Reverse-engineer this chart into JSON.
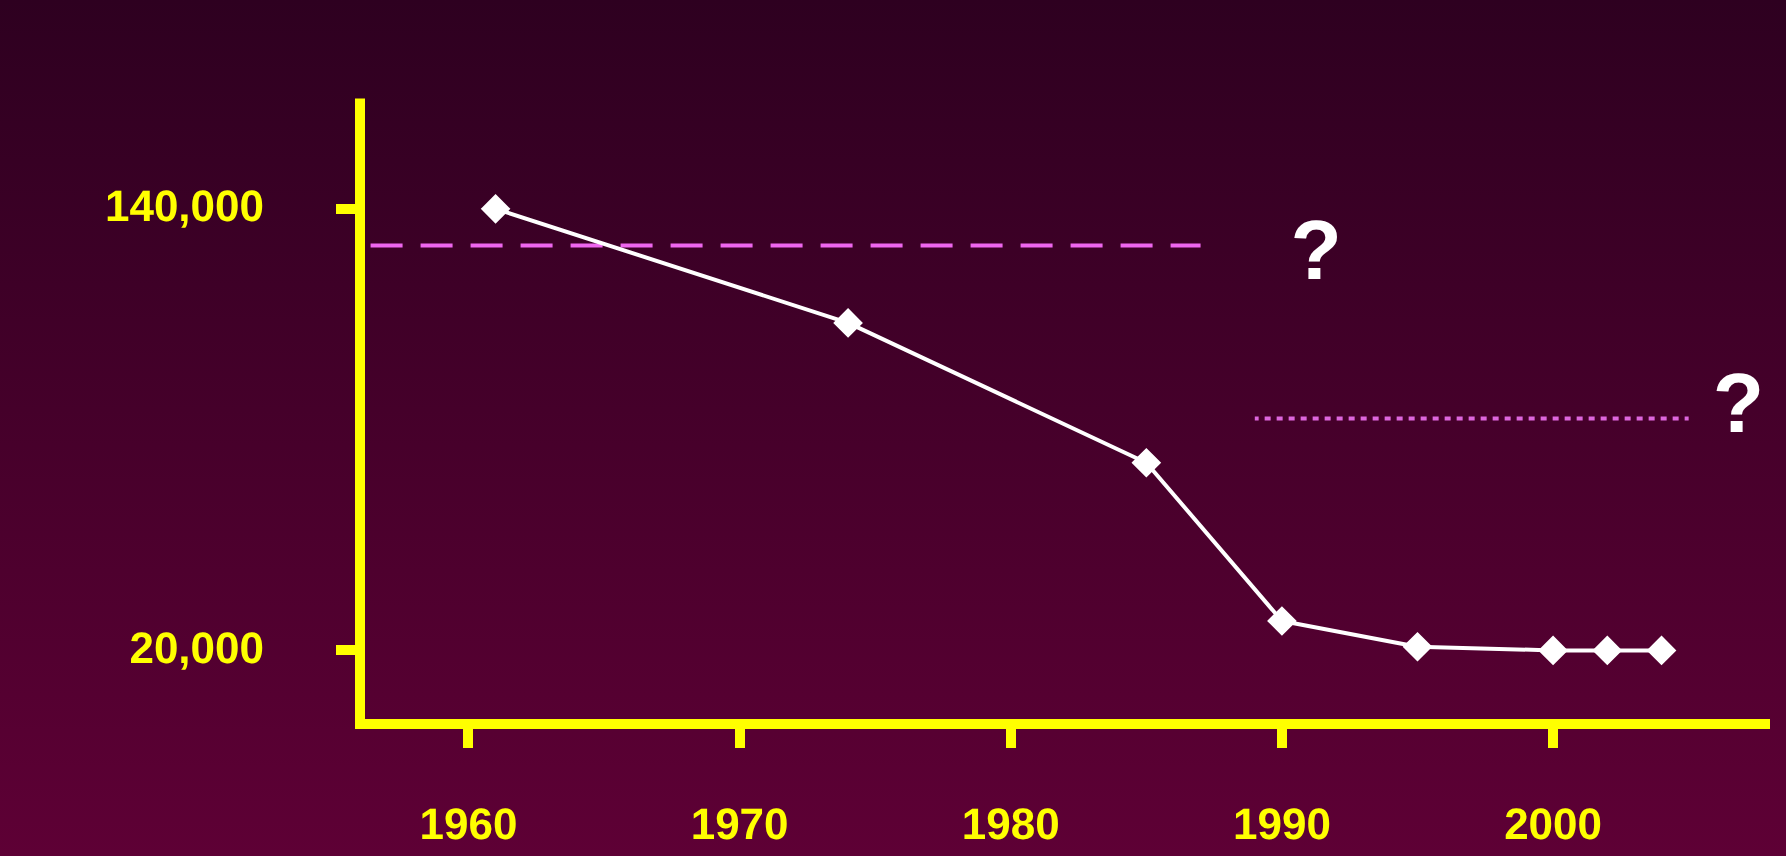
{
  "chart_data": {
    "type": "line",
    "xlim": [
      1956,
      2008
    ],
    "xticks": [
      1960,
      1970,
      1980,
      1990,
      2000
    ],
    "ylim": [
      0,
      170000
    ],
    "yticks": [
      {
        "value": 20000,
        "label": "20,000"
      },
      {
        "value": 140000,
        "label": "140,000"
      }
    ],
    "grid": false,
    "legend": false,
    "series": [
      {
        "color": "#ffffff",
        "marker": "diamond",
        "x": [
          1961,
          1974,
          1985,
          1990,
          1995,
          2000,
          2002,
          2004
        ],
        "values": [
          140000,
          109000,
          71000,
          28000,
          21000,
          20000,
          20000,
          20000
        ]
      },
      {
        "color": "#ee66ee",
        "marker": "none",
        "line_style": "dashed",
        "x": [
          1956,
          1987
        ],
        "values": [
          130000,
          130000
        ]
      },
      {
        "color": "#dd66dd",
        "marker": "none",
        "line_style": "dotted",
        "x": [
          1989,
          2005
        ],
        "values": [
          83000,
          83000
        ]
      }
    ],
    "annotations": [
      "?",
      "?"
    ]
  }
}
